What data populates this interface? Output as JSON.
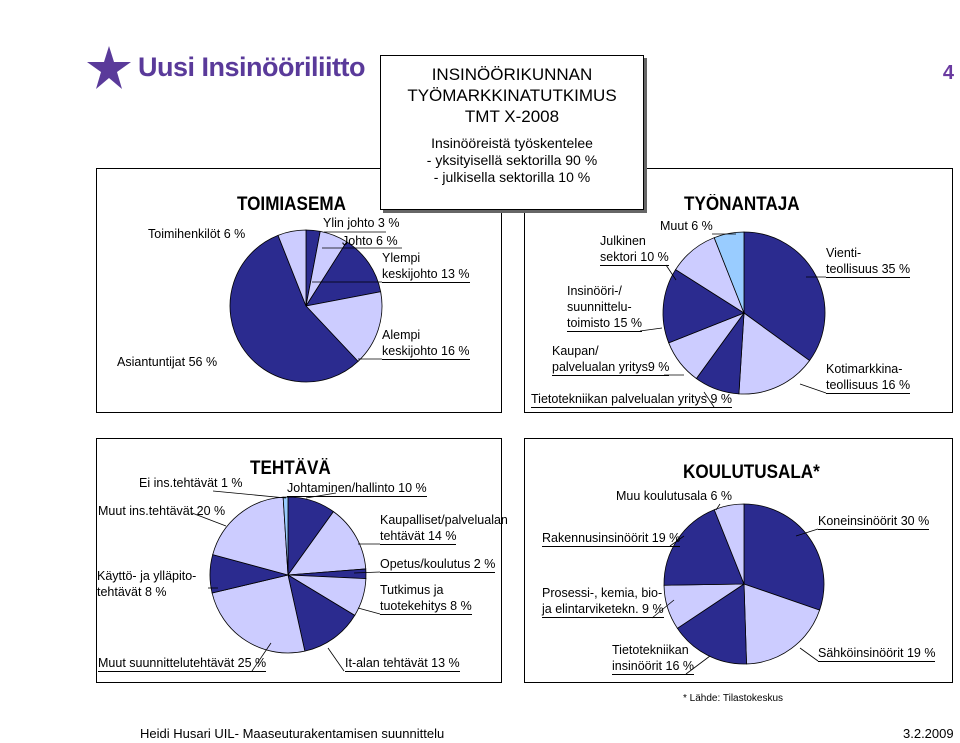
{
  "header": {
    "brand": "Uusi Insinööriliitto",
    "page_number": "4",
    "title_line1": "INSINÖÖRIKUNNAN",
    "title_line2": "TYÖMARKKINATUTKIMUS",
    "title_line3": "TMT X-2008",
    "sub_line1": "Insinööreistä työskentelee",
    "sub_line2": "- yksityisellä sektorilla 90 %",
    "sub_line3": "- julkisella sektorilla 10 %"
  },
  "colors": {
    "dark": "#2b2b8f",
    "light": "#ccccff",
    "sky": "#99ccff",
    "brand": "#5a3a9a"
  },
  "chart_data": [
    {
      "type": "pie",
      "title": "TOIMIASEMA",
      "slices": [
        {
          "label": "Ylin johto 3 %",
          "value": 3,
          "color": "dark"
        },
        {
          "label": "Johto 6 %",
          "value": 6,
          "color": "light"
        },
        {
          "label": "Ylempi keskijohto 13 %",
          "value": 13,
          "color": "dark"
        },
        {
          "label": "Alempi keskijohto 16 %",
          "value": 16,
          "color": "light"
        },
        {
          "label": "Asiantuntijat 56 %",
          "value": 56,
          "color": "dark"
        },
        {
          "label": "Toimihenkilöt 6 %",
          "value": 6,
          "color": "light"
        }
      ]
    },
    {
      "type": "pie",
      "title": "TYÖNANTAJA",
      "slices": [
        {
          "label": "Vienti-teollisuus 35 %",
          "value": 35,
          "color": "dark"
        },
        {
          "label": "Kotimarkkina-teollisuus 16 %",
          "value": 16,
          "color": "light"
        },
        {
          "label": "Tietotekniikan palvelualan yritys 9 %",
          "value": 9,
          "color": "dark"
        },
        {
          "label": "Kaupan/ palvelualan yritys9 %",
          "value": 9,
          "color": "light"
        },
        {
          "label": "Insinööri-/ suunnittelu-toimisto 15 %",
          "value": 15,
          "color": "dark"
        },
        {
          "label": "Julkinen sektori 10 %",
          "value": 10,
          "color": "light"
        },
        {
          "label": "Muut 6 %",
          "value": 6,
          "color": "sky"
        }
      ]
    },
    {
      "type": "pie",
      "title": "TEHTÄVÄ",
      "slices": [
        {
          "label": "Johtaminen/hallinto 10 %",
          "value": 10,
          "color": "dark"
        },
        {
          "label": "Kaupalliset/palvelualan tehtävät 14 %",
          "value": 14,
          "color": "light"
        },
        {
          "label": "Opetus/koulutus 2 %",
          "value": 2,
          "color": "dark"
        },
        {
          "label": "Tutkimus ja tuotekehitys 8 %",
          "value": 8,
          "color": "light"
        },
        {
          "label": "It-alan tehtävät 13 %",
          "value": 13,
          "color": "dark"
        },
        {
          "label": "Muut suunnittelutehtävät 25 %",
          "value": 25,
          "color": "light"
        },
        {
          "label": "Käyttö- ja ylläpito-tehtävät 8 %",
          "value": 8,
          "color": "dark"
        },
        {
          "label": "Muut ins.tehtävät 20 %",
          "value": 20,
          "color": "light"
        },
        {
          "label": "Ei ins.tehtävät 1 %",
          "value": 1,
          "color": "sky"
        }
      ]
    },
    {
      "type": "pie",
      "title": "KOULUTUSALA*",
      "slices": [
        {
          "label": "Koneinsinöörit 30 %",
          "value": 30,
          "color": "dark"
        },
        {
          "label": "Sähköinsinöörit 19 %",
          "value": 19,
          "color": "light"
        },
        {
          "label": "Tietotekniikan insinöörit 16 %",
          "value": 16,
          "color": "dark"
        },
        {
          "label": "Prosessi-, kemia, bio-ja elintarviketekn. 9 %",
          "value": 9,
          "color": "light"
        },
        {
          "label": "Rakennusinsinöörit 19 %",
          "value": 19,
          "color": "dark"
        },
        {
          "label": "Muu koulutusala 6 %",
          "value": 6,
          "color": "light"
        }
      ]
    }
  ],
  "labels": {
    "p1": {
      "toimihenkilot": "Toimihenkilöt 6 %",
      "ylin": "Ylin johto 3 %",
      "johto": "Johto 6 %",
      "ylempi1": "Ylempi",
      "ylempi2": "keskijohto  13 %",
      "alempi1": "Alempi",
      "alempi2": "keskijohto  16 %",
      "asiantuntijat": "Asiantuntijat 56 %"
    },
    "p2": {
      "muut": "Muut 6 %",
      "julkinen1": "Julkinen",
      "julkinen2": "sektori 10 %",
      "insinoori1": "Insinööri-/",
      "insinoori2": "suunnittelu-",
      "insinoori3": "toimisto 15 %",
      "kaupan1": "Kaupan/",
      "kaupan2": "palvelualan yritys9 %",
      "tieto": "Tietotekniikan palvelualan yritys 9 %",
      "vienti1": "Vienti-",
      "vienti2": "teollisuus 35 %",
      "koti1": "Kotimarkkina-",
      "koti2": "teollisuus 16 %"
    },
    "p3": {
      "ei": "Ei ins.tehtävät 1 %",
      "johtaminen": "Johtaminen/hallinto 10 %",
      "muutins": "Muut ins.tehtävät 20 %",
      "kaupalliset1": "Kaupalliset/palvelualan",
      "kaupalliset2": "tehtävät  14 %",
      "kaytto1": "Käyttö- ja ylläpito-",
      "kaytto2": "tehtävät 8 %",
      "opetus": "Opetus/koulutus 2 %",
      "tutkimus1": "Tutkimus ja",
      "tutkimus2": "tuotekehitys 8 %",
      "muutsuun": "Muut suunnittelutehtävät 25 %",
      "it": "It-alan tehtävät 13 %"
    },
    "p4": {
      "muu": "Muu koulutusala 6 %",
      "kone": "Koneinsinöörit 30 %",
      "rakennus": "Rakennusinsinöörit 19 %",
      "prosessi1": "Prosessi-, kemia, bio-",
      "prosessi2": "ja elintarviketekn.  9 %",
      "tieto1": "Tietotekniikan",
      "tieto2": "insinöörit 16 %",
      "sahko": "Sähköinsinöörit 19 %"
    }
  },
  "footer": {
    "source": "* Lähde: Tilastokeskus",
    "left": "Heidi Husari UIL- Maaseuturakentamisen suunnittelu",
    "right": "3.2.2009"
  }
}
